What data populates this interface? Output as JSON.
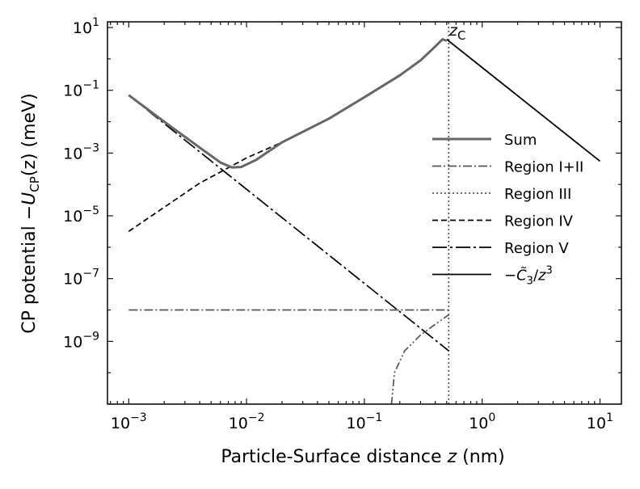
{
  "chart_data": {
    "type": "line",
    "xscale": "log",
    "yscale": "log",
    "xlim": [
      0.00066,
      15.2
    ],
    "ylim": [
      1e-11,
      15.2
    ],
    "xlabel": {
      "prefix": "Particle-Surface distance ",
      "var": "z",
      "suffix": " (nm)"
    },
    "ylabel": {
      "prefix": "CP potential −",
      "var": "U",
      "sub": "CP",
      "suffix": "(z) (meV)"
    },
    "x_ticks": [
      {
        "value": 0.001,
        "base": "10",
        "exp": "−3"
      },
      {
        "value": 0.01,
        "base": "10",
        "exp": "−2"
      },
      {
        "value": 0.1,
        "base": "10",
        "exp": "−1"
      },
      {
        "value": 1,
        "base": "10",
        "exp": "0"
      },
      {
        "value": 10,
        "base": "10",
        "exp": "1"
      }
    ],
    "y_ticks": [
      {
        "value": 1e-09,
        "base": "10",
        "exp": "−9"
      },
      {
        "value": 1e-07,
        "base": "10",
        "exp": "−7"
      },
      {
        "value": 1e-05,
        "base": "10",
        "exp": "−5"
      },
      {
        "value": 0.001,
        "base": "10",
        "exp": "−3"
      },
      {
        "value": 0.1,
        "base": "10",
        "exp": "−1"
      },
      {
        "value": 10,
        "base": "10",
        "exp": "1"
      }
    ],
    "annotations": [
      {
        "var": "z",
        "sub": "C",
        "x": 0.52,
        "y": 10
      }
    ],
    "legend_position": "right",
    "grid": false,
    "series": [
      {
        "name": "Sum",
        "color": "#666666",
        "dash": "solid",
        "points": [
          [
            0.001,
            0.07
          ],
          [
            0.002,
            0.01
          ],
          [
            0.004,
            0.0015
          ],
          [
            0.006,
            0.0005
          ],
          [
            0.0075,
            0.00035
          ],
          [
            0.009,
            0.00036
          ],
          [
            0.012,
            0.0006
          ],
          [
            0.02,
            0.0022
          ],
          [
            0.05,
            0.0125
          ],
          [
            0.1,
            0.06
          ],
          [
            0.2,
            0.3
          ],
          [
            0.3,
            0.9
          ],
          [
            0.4,
            2.5
          ],
          [
            0.46,
            4.2
          ],
          [
            0.5,
            3.8
          ]
        ]
      },
      {
        "name": "Region I+II",
        "color": "#555555",
        "dash": "dashdot",
        "points": [
          [
            0.001,
            1e-08
          ],
          [
            0.52,
            1e-08
          ]
        ]
      },
      {
        "name": "Region III",
        "color": "#555555",
        "dash": "dotted",
        "points": [
          [
            0.52,
            1e-11
          ],
          [
            0.52,
            15
          ]
        ]
      },
      {
        "name": "Region IV",
        "color": "#000000",
        "dash": "dashed",
        "points": [
          [
            0.001,
            3.2e-06
          ],
          [
            0.004,
            0.00011
          ],
          [
            0.01,
            0.0007
          ],
          [
            0.02,
            0.0022
          ],
          [
            0.05,
            0.0125
          ],
          [
            0.1,
            0.06
          ],
          [
            0.2,
            0.3
          ],
          [
            0.3,
            0.9
          ],
          [
            0.4,
            2.5
          ],
          [
            0.46,
            4.2
          ]
        ]
      },
      {
        "name": "Region V",
        "color": "#000000",
        "dash": "longdashdot",
        "points": [
          [
            0.001,
            0.07
          ],
          [
            0.52,
            5e-10
          ]
        ]
      },
      {
        "name_parts": {
          "prefix": "−",
          "var": "C̃",
          "sub": "3",
          "mid": "/",
          "var2": "z",
          "sup": "3"
        },
        "color": "#000000",
        "dash": "solid",
        "points": [
          [
            0.5,
            4.2
          ],
          [
            10,
            0.00055
          ]
        ]
      }
    ],
    "extra_curves": [
      {
        "name": "Region III lower branch",
        "color": "#555555",
        "dash": "dashdotdot",
        "points": [
          [
            0.17,
            1e-11
          ],
          [
            0.18,
            1e-10
          ],
          [
            0.22,
            5e-10
          ],
          [
            0.3,
            1.6e-09
          ],
          [
            0.4,
            3.5e-09
          ],
          [
            0.52,
            7e-09
          ]
        ]
      }
    ]
  }
}
